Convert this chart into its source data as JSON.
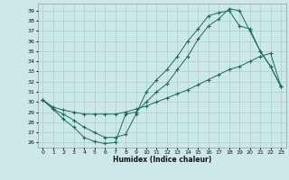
{
  "xlabel": "Humidex (Indice chaleur)",
  "bg_color": "#cce8e8",
  "grid_color": "#b0d8d8",
  "line_color": "#1a6b5a",
  "xlim": [
    -0.5,
    23.5
  ],
  "ylim": [
    25.5,
    39.7
  ],
  "xticks": [
    0,
    1,
    2,
    3,
    4,
    5,
    6,
    7,
    8,
    9,
    10,
    11,
    12,
    13,
    14,
    15,
    16,
    17,
    18,
    19,
    20,
    21,
    22,
    23
  ],
  "yticks": [
    26,
    27,
    28,
    29,
    30,
    31,
    32,
    33,
    34,
    35,
    36,
    37,
    38,
    39
  ],
  "line1_x": [
    0,
    1,
    2,
    3,
    4,
    5,
    6,
    7,
    8,
    9,
    10,
    11,
    12,
    13,
    14,
    15,
    16,
    17,
    18,
    19,
    20,
    21,
    22,
    23
  ],
  "line1_y": [
    30.2,
    29.3,
    28.3,
    27.5,
    26.5,
    26.1,
    25.9,
    26.0,
    28.8,
    29.0,
    30.0,
    31.0,
    31.8,
    33.2,
    34.5,
    36.2,
    37.5,
    38.2,
    39.2,
    39.0,
    37.0,
    35.0,
    33.5,
    31.5
  ],
  "line2_x": [
    0,
    1,
    2,
    3,
    4,
    5,
    6,
    7,
    8,
    9,
    10,
    11,
    12,
    13,
    14,
    15,
    16,
    17,
    18,
    19,
    20,
    21,
    22,
    23
  ],
  "line2_y": [
    30.2,
    29.3,
    28.8,
    28.2,
    27.5,
    27.0,
    26.5,
    26.5,
    26.8,
    28.8,
    31.0,
    32.2,
    33.2,
    34.5,
    36.0,
    37.2,
    38.5,
    38.8,
    39.0,
    37.5,
    37.2,
    35.0,
    33.5,
    31.5
  ],
  "line3_x": [
    0,
    1,
    2,
    3,
    4,
    5,
    6,
    7,
    8,
    9,
    10,
    11,
    12,
    13,
    14,
    15,
    16,
    17,
    18,
    19,
    20,
    21,
    22,
    23
  ],
  "line3_y": [
    30.2,
    29.5,
    29.2,
    29.0,
    28.8,
    28.8,
    28.8,
    28.8,
    29.0,
    29.3,
    29.6,
    30.0,
    30.4,
    30.8,
    31.2,
    31.7,
    32.2,
    32.7,
    33.2,
    33.5,
    34.0,
    34.5,
    34.8,
    31.5
  ]
}
